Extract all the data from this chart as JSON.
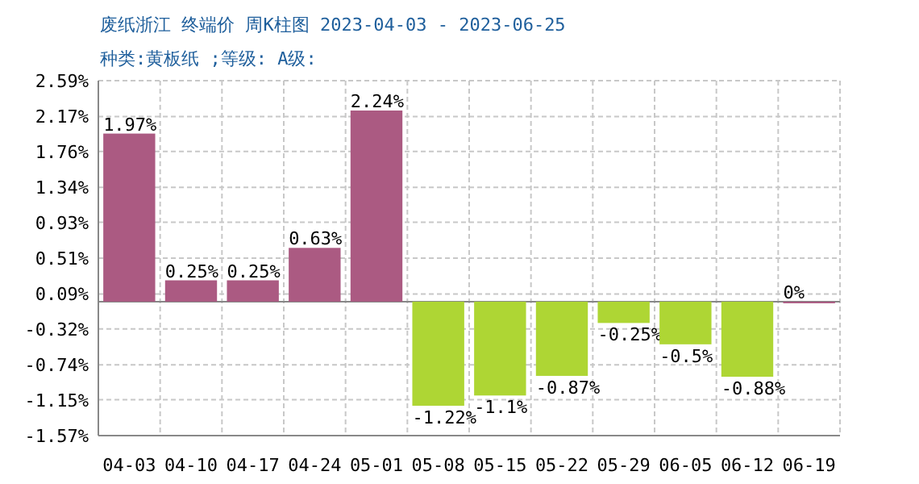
{
  "chart_data": {
    "type": "bar",
    "title": "废纸浙江 终端价 周K柱图 2023-04-03 - 2023-06-25",
    "subtitle": "种类:黄板纸 ;等级: A级:",
    "categories": [
      "04-03",
      "04-10",
      "04-17",
      "04-24",
      "05-01",
      "05-08",
      "05-15",
      "05-22",
      "05-29",
      "06-05",
      "06-12",
      "06-19"
    ],
    "values": [
      1.97,
      0.25,
      0.25,
      0.63,
      2.24,
      -1.22,
      -1.1,
      -0.87,
      -0.25,
      -0.5,
      -0.88,
      0
    ],
    "value_labels": [
      "1.97%",
      "0.25%",
      "0.25%",
      "0.63%",
      "2.24%",
      "-1.22%",
      "-1.1%",
      "-0.87%",
      "-0.25%",
      "-0.5%",
      "-0.88%",
      "0%"
    ],
    "colors": [
      "#ab5a82",
      "#ab5a82",
      "#ab5a82",
      "#ab5a82",
      "#ab5a82",
      "#aed634",
      "#aed634",
      "#aed634",
      "#aed634",
      "#aed634",
      "#aed634",
      "#ab5a82"
    ],
    "ylim": [
      -1.57,
      2.59
    ],
    "yticks": [
      {
        "value": -1.57,
        "label": "-1.57%"
      },
      {
        "value": -1.15,
        "label": "-1.15%"
      },
      {
        "value": -0.74,
        "label": "-0.74%"
      },
      {
        "value": -0.32,
        "label": "-0.32%"
      },
      {
        "value": 0.09,
        "label": "0.09%"
      },
      {
        "value": 0.51,
        "label": "0.51%"
      },
      {
        "value": 0.93,
        "label": "0.93%"
      },
      {
        "value": 1.34,
        "label": "1.34%"
      },
      {
        "value": 1.76,
        "label": "1.76%"
      },
      {
        "value": 2.17,
        "label": "2.17%"
      },
      {
        "value": 2.59,
        "label": "2.59%"
      }
    ],
    "grid": true
  }
}
